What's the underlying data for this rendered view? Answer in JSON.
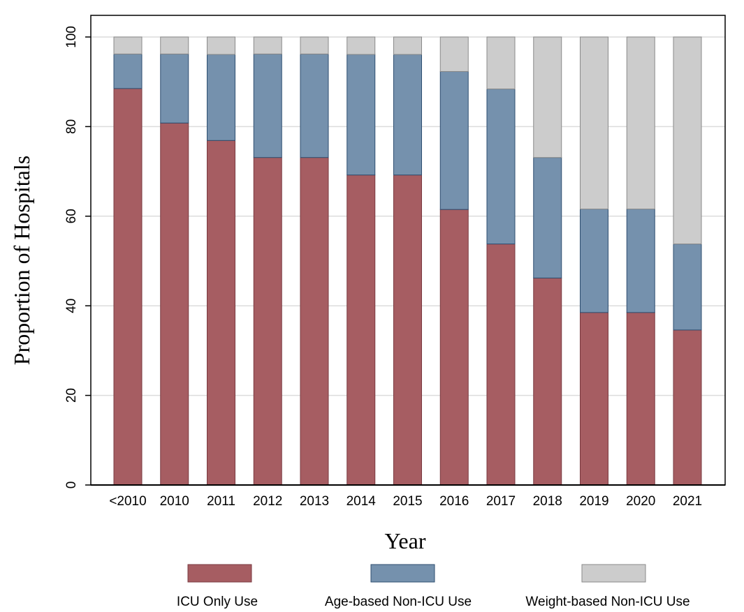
{
  "chart_data": {
    "type": "bar",
    "stacked": true,
    "title": "",
    "xlabel": "Year",
    "ylabel": "Proportion of Hospitals",
    "ylim": [
      0,
      100
    ],
    "yticks": [
      0,
      20,
      40,
      60,
      80,
      100
    ],
    "grid": true,
    "legend_position": "bottom",
    "categories": [
      "<2010",
      "2010",
      "2011",
      "2012",
      "2013",
      "2014",
      "2015",
      "2016",
      "2017",
      "2018",
      "2019",
      "2020",
      "2021"
    ],
    "series": [
      {
        "name": "ICU Only Use",
        "color": "#a65d62",
        "edge_color": "#7a3a40",
        "values": [
          88.5,
          80.8,
          76.9,
          73.1,
          73.1,
          69.2,
          69.2,
          61.5,
          53.8,
          46.2,
          38.5,
          38.5,
          34.6
        ]
      },
      {
        "name": "Age-based Non-ICU Use",
        "color": "#7591ad",
        "edge_color": "#2e4e70",
        "values": [
          7.7,
          15.4,
          19.2,
          23.1,
          23.1,
          26.9,
          26.9,
          30.8,
          34.6,
          26.9,
          23.1,
          23.1,
          19.2
        ]
      },
      {
        "name": "Weight-based Non-ICU Use",
        "color": "#cccccc",
        "edge_color": "#8a8a8a",
        "values": [
          3.8,
          3.8,
          3.9,
          3.8,
          3.8,
          3.9,
          3.9,
          7.7,
          11.6,
          26.9,
          38.4,
          38.4,
          46.2
        ]
      }
    ]
  }
}
